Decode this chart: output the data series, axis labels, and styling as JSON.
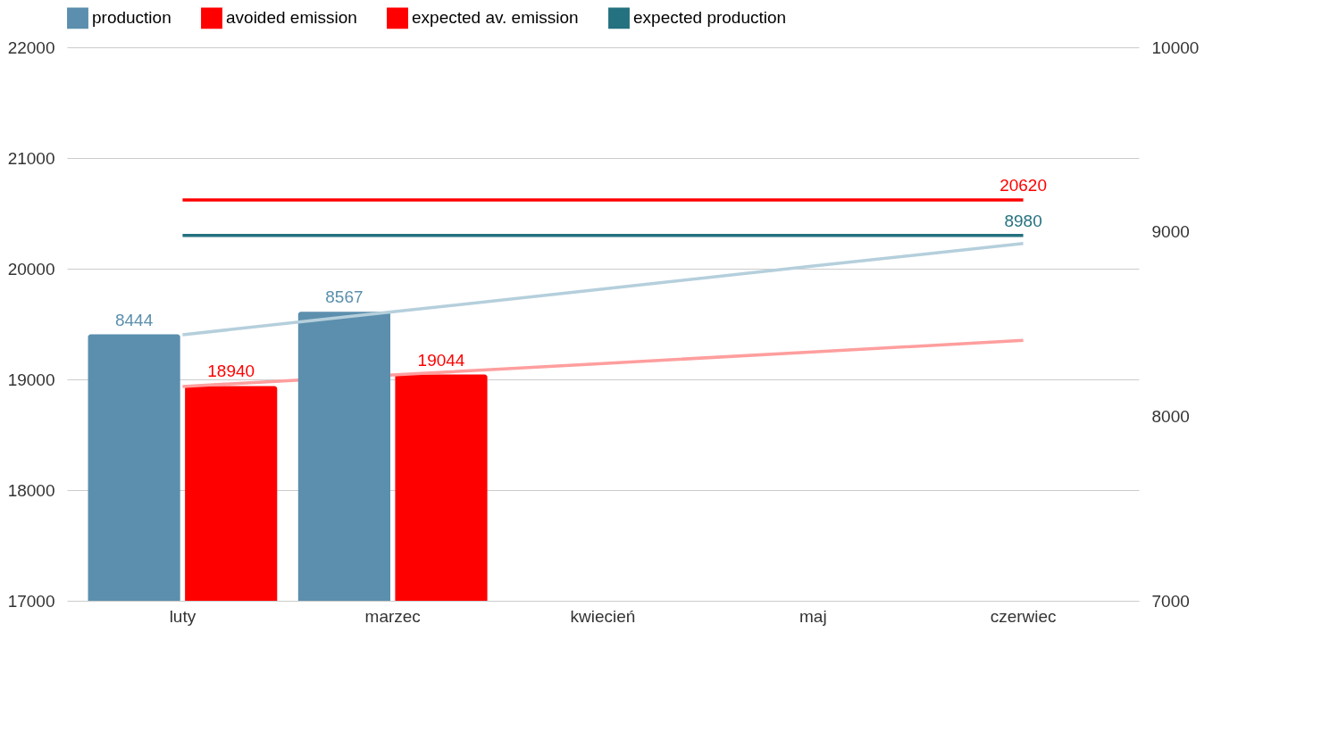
{
  "chart_data": {
    "type": "bar",
    "categories": [
      "luty",
      "marzec",
      "kwiecień",
      "maj",
      "czerwiec"
    ],
    "series": [
      {
        "name": "production",
        "color": "#5b8fad",
        "axis": "y2",
        "values": [
          8444,
          8567,
          null,
          null,
          null
        ],
        "value_labels": [
          "8444",
          "8567",
          null,
          null,
          null
        ]
      },
      {
        "name": "avoided emission",
        "color": "#ff0000",
        "axis": "y",
        "values": [
          18940,
          19044,
          null,
          null,
          null
        ],
        "value_labels": [
          "18940",
          "19044",
          null,
          null,
          null
        ]
      },
      {
        "name": "expected av. emission",
        "color": "#ff0000",
        "type": "line",
        "axis": "y",
        "values": [
          20620,
          20620,
          20620,
          20620,
          20620
        ],
        "value_labels": [
          null,
          null,
          null,
          null,
          "20620"
        ]
      },
      {
        "name": "expected production",
        "color": "#24717f",
        "type": "line",
        "axis": "y2",
        "values": [
          8980,
          8980,
          8980,
          8980,
          8980
        ],
        "value_labels": [
          null,
          null,
          null,
          null,
          "8980"
        ]
      },
      {
        "color": "#b5cfdc",
        "type": "line",
        "axis": "y2",
        "values": [
          8442,
          8566,
          8690,
          8814,
          8937
        ]
      },
      {
        "color": "#ff9e9e",
        "type": "line",
        "axis": "y",
        "values": [
          18936,
          19040,
          19144,
          19248,
          19352
        ]
      }
    ],
    "ylim": [
      17000,
      22000
    ],
    "yticks": [
      17000,
      18000,
      19000,
      20000,
      21000,
      22000
    ],
    "y2lim": [
      7000,
      10000
    ],
    "y2ticks": [
      7000,
      8000,
      9000,
      10000
    ],
    "grid": "y",
    "legend": "top"
  }
}
